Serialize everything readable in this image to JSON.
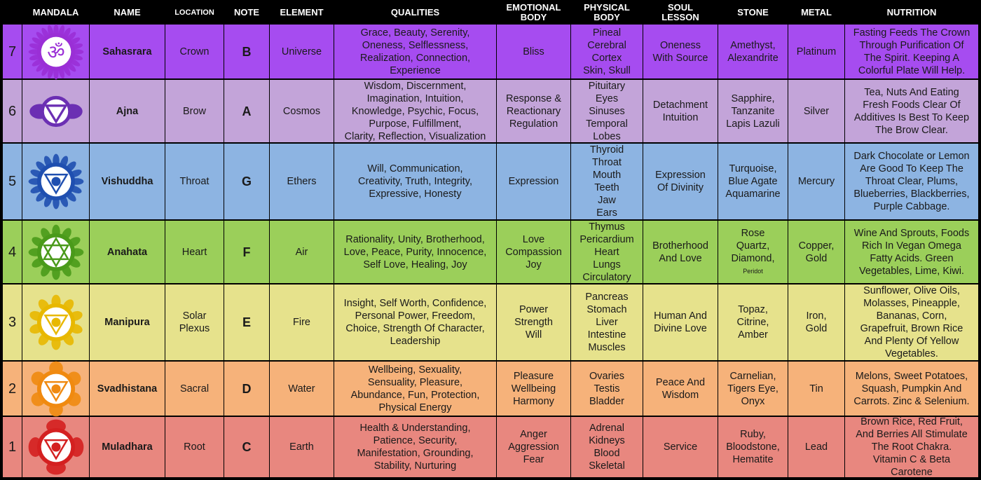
{
  "headers": {
    "mandala": "MANDALA",
    "name": "NAME",
    "location": "LOCATION",
    "note": "NOTE",
    "element": "ELEMENT",
    "qualities": "QUALITIES",
    "emotional": "EMOTIONAL\nBODY",
    "physical": "PHYSICAL\nBODY",
    "soul": "SOUL\nLESSON",
    "stone": "STONE",
    "metal": "METAL",
    "nutrition": "NUTRITION"
  },
  "rows": [
    {
      "number": "7",
      "name": "Sahasrara",
      "location": "Crown",
      "note": "B",
      "element": "Universe",
      "qualities": "Grace, Beauty, Serenity,\nOneness, Selflessness,\nRealization, Connection,\nExperience",
      "emotional": "Bliss",
      "physical": "Pineal\nCerebral\nCortex\nSkin, Skull",
      "soul": "Oneness\nWith Source",
      "stone": "Amethyst,\nAlexandrite",
      "stone_note": "",
      "metal": "Platinum",
      "nutrition": "Fasting Feeds The Crown\nThrough Purification Of\nThe Spirit. Keeping A\nColorful Plate Will Help.",
      "color": "#a64cf0",
      "symbol": "crown-mandala-icon",
      "symbol_color": "#9a2fd6"
    },
    {
      "number": "6",
      "name": "Ajna",
      "location": "Brow",
      "note": "A",
      "element": "Cosmos",
      "qualities": "Wisdom, Discernment,\nImagination, Intuition,\nKnowledge, Psychic, Focus,\nPurpose, Fulfillment,\nClarity, Reflection, Visualization",
      "emotional": "Response &\nReactionary\nRegulation",
      "physical": "Pituitary\nEyes\nSinuses\nTemporal\nLobes",
      "soul": "Detachment\nIntuition",
      "stone": "Sapphire,\nTanzanite\nLapis Lazuli",
      "stone_note": "",
      "metal": "Silver",
      "nutrition": "Tea, Nuts And Eating\nFresh Foods Clear Of\nAdditives Is Best To Keep\nThe Brow Clear.",
      "color": "#c3a4d9",
      "symbol": "third-eye-mandala-icon",
      "symbol_color": "#6b2fb3"
    },
    {
      "number": "5",
      "name": "Vishuddha",
      "location": "Throat",
      "note": "G",
      "element": "Ethers",
      "qualities": "Will, Communication,\nCreativity, Truth, Integrity,\nExpressive, Honesty",
      "emotional": "Expression",
      "physical": "Thyroid\nThroat\nMouth\nTeeth\nJaw\nEars",
      "soul": "Expression\nOf Divinity",
      "stone": "Turquoise,\nBlue Agate\nAquamarine",
      "stone_note": "",
      "metal": "Mercury",
      "nutrition": "Dark Chocolate or Lemon\nAre Good To Keep The\nThroat Clear, Plums,\nBlueberries, Blackberries,\nPurple Cabbage.",
      "color": "#8db4e2",
      "symbol": "throat-mandala-icon",
      "symbol_color": "#1f4fb0"
    },
    {
      "number": "4",
      "name": "Anahata",
      "location": "Heart",
      "note": "F",
      "element": "Air",
      "qualities": "Rationality, Unity, Brotherhood,\nLove, Peace, Purity, Innocence,\nSelf Love, Healing, Joy",
      "emotional": "Love\nCompassion\nJoy",
      "physical": "Thymus\nPericardium\nHeart\nLungs\nCirculatory",
      "soul": "Brotherhood\nAnd Love",
      "stone": "Rose\nQuartz,\nDiamond,",
      "stone_note": "Peridot",
      "metal": "Copper,\nGold",
      "nutrition": "Wine And Sprouts, Foods\nRich In Vegan Omega\nFatty Acids. Green\nVegetables, Lime, Kiwi.",
      "color": "#9bcf5a",
      "symbol": "heart-mandala-icon",
      "symbol_color": "#4a9a1a"
    },
    {
      "number": "3",
      "name": "Manipura",
      "location": "Solar\nPlexus",
      "note": "E",
      "element": "Fire",
      "qualities": "Insight, Self Worth, Confidence,\nPersonal Power, Freedom,\nChoice, Strength Of Character,\nLeadership",
      "emotional": "Power\nStrength\nWill",
      "physical": "Pancreas\nStomach\nLiver\nIntestine\nMuscles",
      "soul": "Human And\nDivine Love",
      "stone": "Topaz,\nCitrine,\nAmber",
      "stone_note": "",
      "metal": "Iron,\nGold",
      "nutrition": "Sunflower, Olive Oils,\nMolasses, Pineapple,\nBananas, Corn,\nGrapefruit, Brown Rice\nAnd Plenty Of Yellow\nVegetables.",
      "color": "#e6e28c",
      "symbol": "solar-plexus-mandala-icon",
      "symbol_color": "#e8b800"
    },
    {
      "number": "2",
      "name": "Svadhistana",
      "location": "Sacral",
      "note": "D",
      "element": "Water",
      "qualities": "Wellbeing, Sexuality,\nSensuality, Pleasure,\nAbundance, Fun, Protection,\nPhysical Energy",
      "emotional": "Pleasure\nWellbeing\nHarmony",
      "physical": "Ovaries\nTestis\nBladder",
      "soul": "Peace And\nWisdom",
      "stone": "Carnelian,\nTigers Eye,\nOnyx",
      "stone_note": "",
      "metal": "Tin",
      "nutrition": "Melons, Sweet Potatoes,\nSquash, Pumpkin And\nCarrots. Zinc & Selenium.",
      "color": "#f6b27a",
      "symbol": "sacral-mandala-icon",
      "symbol_color": "#f08a10"
    },
    {
      "number": "1",
      "name": "Muladhara",
      "location": "Root",
      "note": "C",
      "element": "Earth",
      "qualities": "Health & Understanding,\nPatience, Security,\nManifestation, Grounding,\nStability, Nurturing",
      "emotional": "Anger\nAggression\nFear",
      "physical": "Adrenal\nKidneys\nBlood\nSkeletal",
      "soul": "Service",
      "stone": "Ruby,\nBloodstone,\nHematite",
      "stone_note": "",
      "metal": "Lead",
      "nutrition": "Brown Rice, Red Fruit,\nAnd Berries All Stimulate\nThe Root Chakra.\nVitamin C & Beta\nCarotene",
      "color": "#e8877f",
      "symbol": "root-mandala-icon",
      "symbol_color": "#d42020"
    }
  ]
}
